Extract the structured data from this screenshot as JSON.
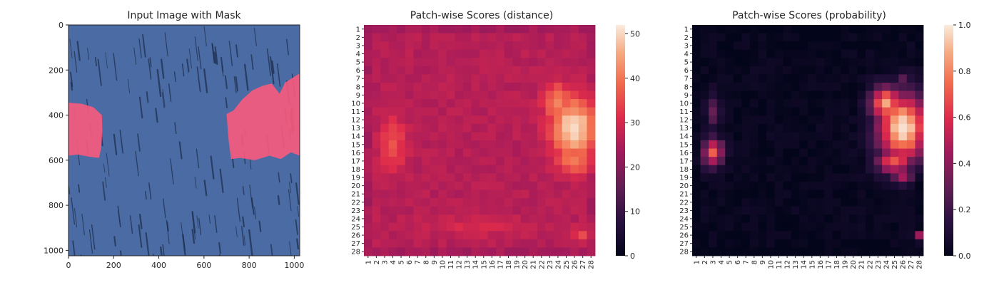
{
  "chart_data": [
    {
      "type": "image",
      "title": "Input Image with Mask",
      "xlim": [
        0,
        1024
      ],
      "ylim": [
        1024,
        0
      ],
      "x_ticks": [
        0,
        200,
        400,
        600,
        800,
        1000
      ],
      "y_ticks": [
        0,
        200,
        400,
        600,
        800,
        1000
      ],
      "colors": {
        "background": "#4a6ba3",
        "grain": "#1f2f4f",
        "mask": "#ff5a7c"
      },
      "mask_regions": [
        {
          "name": "left-mask",
          "points": [
            [
              0,
              345
            ],
            [
              60,
              350
            ],
            [
              110,
              365
            ],
            [
              148,
              400
            ],
            [
              150,
              470
            ],
            [
              145,
              545
            ],
            [
              135,
              590
            ],
            [
              95,
              585
            ],
            [
              40,
              575
            ],
            [
              0,
              580
            ]
          ]
        },
        {
          "name": "right-mask",
          "points": [
            [
              700,
              395
            ],
            [
              730,
              380
            ],
            [
              770,
              330
            ],
            [
              815,
              290
            ],
            [
              860,
              270
            ],
            [
              900,
              260
            ],
            [
              935,
              305
            ],
            [
              960,
              255
            ],
            [
              1000,
              230
            ],
            [
              1024,
              215
            ],
            [
              1024,
              580
            ],
            [
              985,
              565
            ],
            [
              940,
              595
            ],
            [
              890,
              580
            ],
            [
              825,
              600
            ],
            [
              760,
              590
            ],
            [
              720,
              595
            ],
            [
              710,
              520
            ],
            [
              705,
              460
            ]
          ]
        }
      ]
    },
    {
      "type": "heatmap",
      "title": "Patch-wise Scores (distance)",
      "rows": 28,
      "cols": 28,
      "tick_labels": [
        "1",
        "2",
        "3",
        "4",
        "5",
        "6",
        "7",
        "8",
        "9",
        "10",
        "11",
        "12",
        "13",
        "14",
        "15",
        "16",
        "17",
        "18",
        "19",
        "20",
        "21",
        "22",
        "23",
        "24",
        "25",
        "26",
        "27",
        "28"
      ],
      "vmin": 0,
      "vmax": 52,
      "colorbar_ticks": [
        0,
        10,
        20,
        30,
        40,
        50
      ],
      "base_value": 26,
      "border_value": 24,
      "hotspots": [
        {
          "row": 13,
          "col": 26,
          "value": 51,
          "rx": 2.6,
          "ry": 3.4
        },
        {
          "row": 15,
          "col": 4,
          "value": 36,
          "rx": 1.5,
          "ry": 3.0
        },
        {
          "row": 10,
          "col": 24,
          "value": 42,
          "rx": 1.6,
          "ry": 2.2
        },
        {
          "row": 17,
          "col": 26,
          "value": 40,
          "rx": 2.2,
          "ry": 1.6
        },
        {
          "row": 26,
          "col": 27,
          "value": 34,
          "rx": 1.2,
          "ry": 1.0
        },
        {
          "row": 25,
          "col": 14,
          "value": 30,
          "rx": 7.0,
          "ry": 1.0
        }
      ]
    },
    {
      "type": "heatmap",
      "title": "Patch-wise Scores (probability)",
      "rows": 28,
      "cols": 28,
      "tick_labels": [
        "1",
        "2",
        "3",
        "4",
        "5",
        "6",
        "7",
        "8",
        "9",
        "10",
        "11",
        "12",
        "13",
        "14",
        "15",
        "16",
        "17",
        "18",
        "19",
        "20",
        "21",
        "22",
        "23",
        "24",
        "25",
        "26",
        "27",
        "28"
      ],
      "vmin": 0,
      "vmax": 1.0,
      "colorbar_ticks": [
        0.0,
        0.2,
        0.4,
        0.6,
        0.8,
        1.0
      ],
      "base_value": 0.02,
      "border_value": 0.0,
      "hotspots": [
        {
          "row": 13,
          "col": 26,
          "value": 1.0,
          "rx": 2.8,
          "ry": 3.8
        },
        {
          "row": 10,
          "col": 24,
          "value": 0.85,
          "rx": 1.8,
          "ry": 2.0
        },
        {
          "row": 17,
          "col": 25,
          "value": 0.7,
          "rx": 2.0,
          "ry": 1.5
        },
        {
          "row": 16,
          "col": 3,
          "value": 0.7,
          "rx": 1.2,
          "ry": 1.6
        },
        {
          "row": 11,
          "col": 3,
          "value": 0.3,
          "rx": 0.8,
          "ry": 2.0
        },
        {
          "row": 26,
          "col": 28,
          "value": 0.45,
          "rx": 0.6,
          "ry": 0.6
        },
        {
          "row": 7,
          "col": 26,
          "value": 0.3,
          "rx": 0.8,
          "ry": 0.8
        },
        {
          "row": 19,
          "col": 26,
          "value": 0.45,
          "rx": 1.2,
          "ry": 0.8
        }
      ]
    }
  ]
}
